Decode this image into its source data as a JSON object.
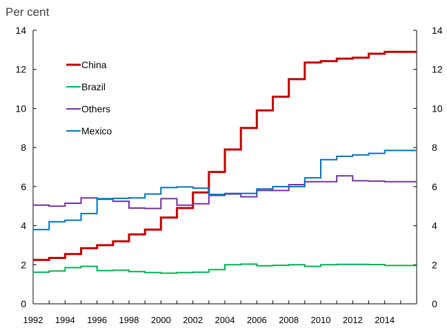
{
  "chart_data": {
    "type": "line",
    "unit_label": "Per cent",
    "title": "",
    "xlabel": "",
    "ylabel": "Per cent",
    "xlim": [
      1992,
      2016
    ],
    "ylim": [
      0,
      14
    ],
    "yticks": [
      0,
      2,
      4,
      6,
      8,
      10,
      12,
      14
    ],
    "xticks": [
      "1992",
      "1994",
      "1996",
      "1998",
      "2000",
      "2002",
      "2004",
      "2006",
      "2008",
      "2010",
      "2012",
      "2014"
    ],
    "xtick_values": [
      1992,
      1994,
      1996,
      1998,
      2000,
      2002,
      2004,
      2006,
      2008,
      2010,
      2012,
      2014
    ],
    "legend_position": "upper-left",
    "grid": false,
    "series": [
      {
        "name": "China",
        "color": "#c00000",
        "x": [
          1992,
          1993,
          1994,
          1995,
          1996,
          1997,
          1998,
          1999,
          2000,
          2001,
          2002,
          2003,
          2004,
          2005,
          2006,
          2007,
          2008,
          2009,
          2010,
          2011,
          2012,
          2013,
          2014,
          2015
        ],
        "values": [
          2.25,
          2.35,
          2.55,
          2.85,
          3.0,
          3.2,
          3.55,
          3.8,
          4.42,
          4.9,
          5.7,
          6.75,
          7.9,
          9.0,
          9.9,
          10.6,
          11.5,
          12.35,
          12.42,
          12.55,
          12.6,
          12.8,
          12.9,
          12.9
        ]
      },
      {
        "name": "Brazil",
        "color": "#00b050",
        "x": [
          1992,
          1993,
          1994,
          1995,
          1996,
          1997,
          1998,
          1999,
          2000,
          2001,
          2002,
          2003,
          2004,
          2005,
          2006,
          2007,
          2008,
          2009,
          2010,
          2011,
          2012,
          2013,
          2014,
          2015
        ],
        "values": [
          1.62,
          1.68,
          1.85,
          1.92,
          1.7,
          1.72,
          1.65,
          1.6,
          1.57,
          1.6,
          1.62,
          1.75,
          2.0,
          2.03,
          1.95,
          1.97,
          2.0,
          1.92,
          2.0,
          2.02,
          2.02,
          2.01,
          1.96,
          1.96
        ]
      },
      {
        "name": "Others",
        "color": "#7030a0",
        "x": [
          1992,
          1993,
          1994,
          1995,
          1996,
          1997,
          1998,
          1999,
          2000,
          2001,
          2002,
          2003,
          2004,
          2005,
          2006,
          2007,
          2008,
          2009,
          2010,
          2011,
          2012,
          2013,
          2014,
          2015
        ],
        "values": [
          5.05,
          5.0,
          5.15,
          5.42,
          5.35,
          5.25,
          4.9,
          4.88,
          5.38,
          5.05,
          5.12,
          5.55,
          5.62,
          5.48,
          5.8,
          5.8,
          6.1,
          6.25,
          6.25,
          6.55,
          6.3,
          6.28,
          6.25,
          6.25
        ]
      },
      {
        "name": "Mexico",
        "color": "#0070c0",
        "x": [
          1992,
          1993,
          1994,
          1995,
          1996,
          1997,
          1998,
          1999,
          2000,
          2001,
          2002,
          2003,
          2004,
          2005,
          2006,
          2007,
          2008,
          2009,
          2010,
          2011,
          2012,
          2013,
          2014,
          2015
        ],
        "values": [
          3.8,
          4.2,
          4.28,
          4.62,
          5.38,
          5.4,
          5.42,
          5.62,
          5.95,
          5.98,
          5.92,
          5.6,
          5.65,
          5.65,
          5.88,
          6.0,
          6.0,
          6.45,
          7.38,
          7.55,
          7.62,
          7.7,
          7.85,
          7.85
        ]
      }
    ]
  }
}
